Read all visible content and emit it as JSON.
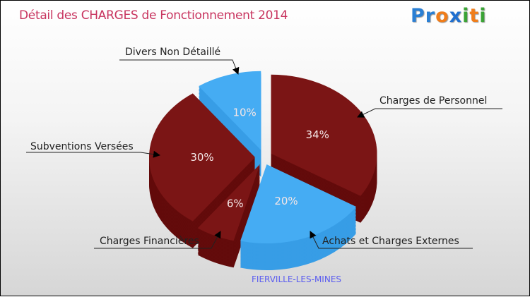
{
  "title": "Détail des CHARGES de Fonctionnement 2014",
  "logo": {
    "letters": [
      "P",
      "r",
      "o",
      "x",
      "i",
      "t",
      "i"
    ],
    "colors": [
      "#2a7fd4",
      "#2a7fd4",
      "#f07d1a",
      "#1f6fd0",
      "#3aa335",
      "#f07d1a",
      "#3aa335"
    ]
  },
  "chart_data": {
    "type": "pie",
    "style": "3d-exploded",
    "title": "Détail des CHARGES de Fonctionnement 2014",
    "subtitle": "FIERVILLE-LES-MINES",
    "slices": [
      {
        "label": "Charges de Personnel",
        "value": 34,
        "pct_label": "34%",
        "color": "#7b1515",
        "side_color": "#630b0b"
      },
      {
        "label": "Achats et Charges Externes",
        "value": 20,
        "pct_label": "20%",
        "color": "#45acf3",
        "side_color": "#379de6"
      },
      {
        "label": "Charges Financières",
        "value": 6,
        "pct_label": "6%",
        "color": "#7b1515",
        "side_color": "#630b0b"
      },
      {
        "label": "Subventions Versées",
        "value": 30,
        "pct_label": "30%",
        "color": "#7b1515",
        "side_color": "#630b0b"
      },
      {
        "label": "Divers Non Détaillé",
        "value": 10,
        "pct_label": "10%",
        "color": "#45acf3",
        "side_color": "#379de6"
      }
    ]
  }
}
